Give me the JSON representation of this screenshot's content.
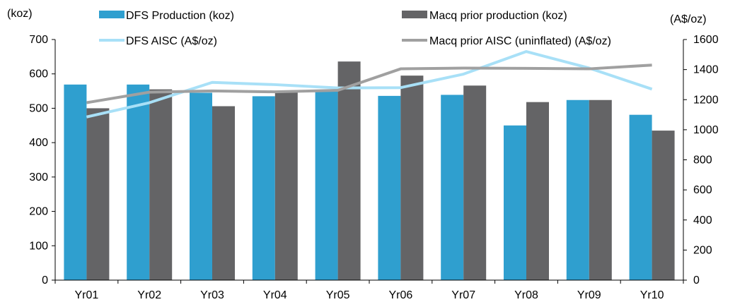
{
  "chart_data": {
    "type": "bar",
    "categories": [
      "Yr01",
      "Yr02",
      "Yr03",
      "Yr04",
      "Yr05",
      "Yr06",
      "Yr07",
      "Yr08",
      "Yr09",
      "Yr10"
    ],
    "left_axis": {
      "label": "(koz)",
      "ylim": [
        0,
        700
      ],
      "ticks": [
        "0",
        "100",
        "200",
        "300",
        "400",
        "500",
        "600",
        "700"
      ]
    },
    "right_axis": {
      "label": "(A$/oz)",
      "ylim": [
        0,
        1600
      ],
      "ticks": [
        "0",
        "200",
        "400",
        "600",
        "800",
        "1000",
        "1200",
        "1400",
        "1600"
      ]
    },
    "bar_series": [
      {
        "name": "DFS Production (koz)",
        "color": "#2f9fcf",
        "axis": "left",
        "values": [
          569,
          569,
          545,
          535,
          550,
          536,
          539,
          450,
          524,
          481
        ]
      },
      {
        "name": "Macq prior production (koz)",
        "color": "#646466",
        "axis": "left",
        "values": [
          500,
          555,
          506,
          550,
          636,
          595,
          566,
          518,
          524,
          435
        ]
      }
    ],
    "line_series": [
      {
        "name": "DFS AISC (A$/oz)",
        "color": "#a8e0f7",
        "axis": "right",
        "values": [
          1085,
          1180,
          1315,
          1300,
          1278,
          1280,
          1370,
          1520,
          1410,
          1270
        ]
      },
      {
        "name": "Macq prior AISC (uninflated) (A$/oz)",
        "color": "#a0a0a0",
        "axis": "right",
        "values": [
          1180,
          1250,
          1258,
          1252,
          1262,
          1405,
          1410,
          1408,
          1405,
          1430
        ]
      }
    ],
    "legend": "top",
    "grid": false
  }
}
